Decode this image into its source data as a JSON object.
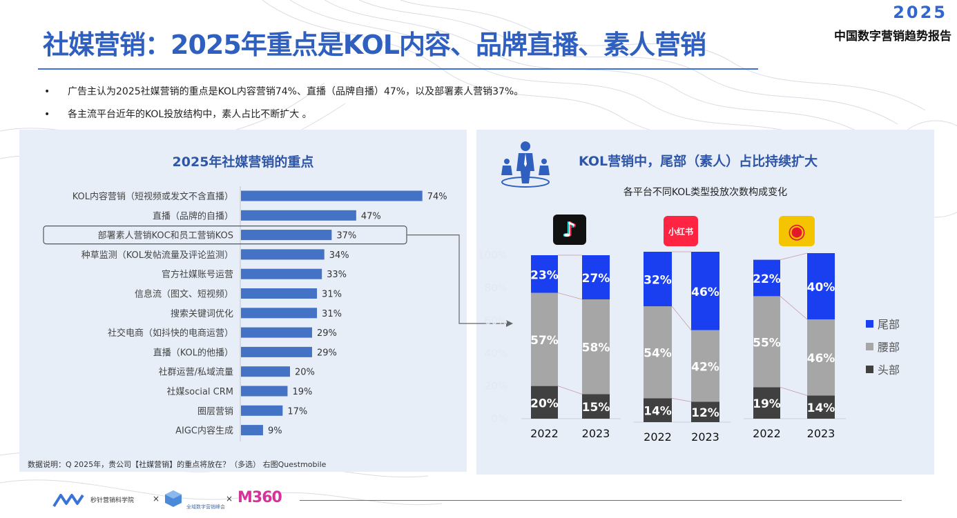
{
  "header": {
    "title": "社媒营销：2025年重点是KOL内容、品牌直播、素人营销",
    "brand_year": "2025",
    "brand_name": "中国数字营销趋势报告"
  },
  "bullets": [
    "广告主认为2025社媒营销的重点是KOL内容营销74%、直播（品牌自播）47%，以及部署素人营销37%。",
    "各主流平台近年的KOL投放结构中，素人占比不断扩大 。"
  ],
  "colors": {
    "bar": "#4472c4",
    "tail": "#1a3ff0",
    "waist": "#a6a6a6",
    "head": "#404040",
    "title": "#2f5fbf"
  },
  "footer": {
    "note": "数据说明：Q 2025年，贵公司【社媒营销】的重点将放在？（多选）    右图Questmobile",
    "partner1": "秒针营销科学院",
    "partner2": "全域数字营销峰会",
    "partner3": "M360",
    "times": "×"
  },
  "chart_data": [
    {
      "type": "bar",
      "orientation": "horizontal",
      "title": "2025年社媒营销的重点",
      "categories": [
        "KOL内容营销（短视频或发文不含直播）",
        "直播（品牌的自播）",
        "部署素人营销KOC和员工营销KOS",
        "种草监测（KOL发帖流量及评论监测）",
        "官方社媒账号运营",
        "信息流（图文、短视频）",
        "搜索关键词优化",
        "社交电商（如抖快的电商运营）",
        "直播（KOL的他播）",
        "社群运营/私域流量",
        "社媒social CRM",
        "圈层营销",
        "AIGC内容生成"
      ],
      "values": [
        74,
        47,
        37,
        34,
        33,
        31,
        31,
        29,
        29,
        20,
        19,
        17,
        9
      ],
      "value_labels": [
        "74%",
        "47%",
        "37%",
        "34%",
        "33%",
        "31%",
        "31%",
        "29%",
        "29%",
        "20%",
        "19%",
        "17%",
        "9%"
      ],
      "xlim": [
        0,
        100
      ],
      "highlight_index": 2
    },
    {
      "type": "bar",
      "stacked": true,
      "title": "KOL营销中，尾部（素人）占比持续扩大",
      "subtitle": "各平台不同KOL类型投放次数构成变化",
      "ylim": [
        0,
        100
      ],
      "yticks": [
        "0%",
        "20%",
        "40%",
        "60%",
        "80%",
        "100%"
      ],
      "legend": [
        "尾部",
        "腰部",
        "头部"
      ],
      "platforms": [
        {
          "name": "抖音",
          "icon": "♪",
          "categories": [
            "2022",
            "2023"
          ],
          "series": [
            {
              "name": "头部",
              "values": [
                20,
                15
              ],
              "labels": [
                "20%",
                "15%"
              ]
            },
            {
              "name": "腰部",
              "values": [
                57,
                58
              ],
              "labels": [
                "57%",
                "58%"
              ]
            },
            {
              "name": "尾部",
              "values": [
                23,
                27
              ],
              "labels": [
                "23%",
                "27%"
              ]
            }
          ]
        },
        {
          "name": "小红书",
          "icon": "小红书",
          "categories": [
            "2022",
            "2023"
          ],
          "series": [
            {
              "name": "头部",
              "values": [
                14,
                12
              ],
              "labels": [
                "14%",
                "12%"
              ]
            },
            {
              "name": "腰部",
              "values": [
                54,
                42
              ],
              "labels": [
                "54%",
                "42%"
              ]
            },
            {
              "name": "尾部",
              "values": [
                32,
                46
              ],
              "labels": [
                "32%",
                "46%"
              ]
            }
          ]
        },
        {
          "name": "微博",
          "icon": "◉",
          "categories": [
            "2022",
            "2023"
          ],
          "series": [
            {
              "name": "头部",
              "values": [
                19,
                14
              ],
              "labels": [
                "19%",
                "14%"
              ]
            },
            {
              "name": "腰部",
              "values": [
                55,
                46
              ],
              "labels": [
                "55%",
                "46%"
              ]
            },
            {
              "name": "尾部",
              "values": [
                22,
                40
              ],
              "labels": [
                "22%",
                "40%"
              ]
            }
          ]
        }
      ]
    }
  ]
}
